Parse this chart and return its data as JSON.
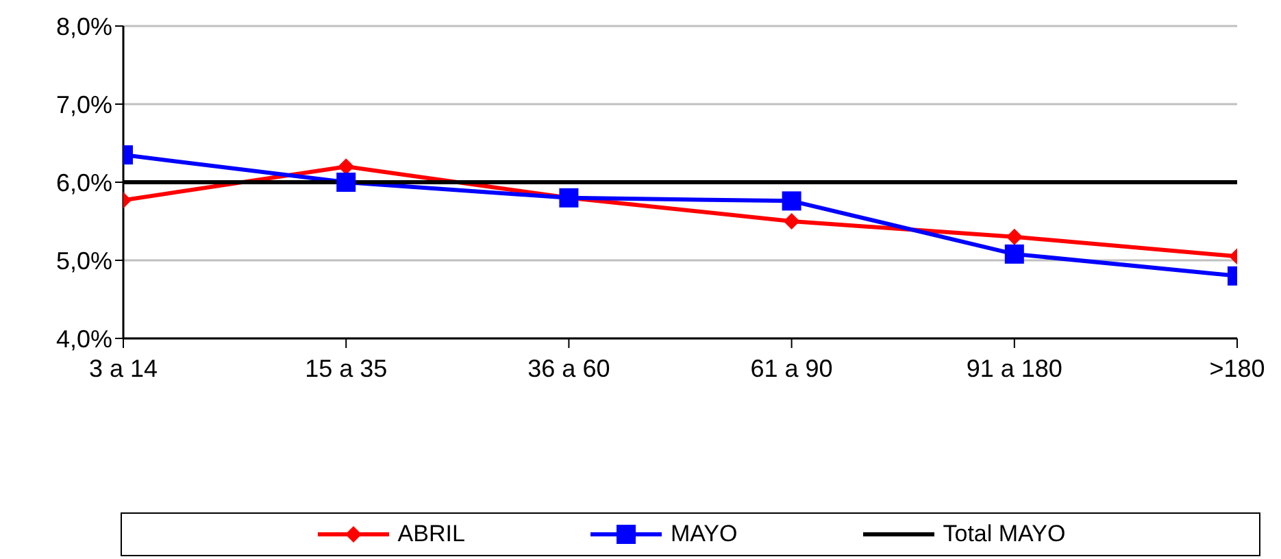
{
  "chart_data": {
    "type": "line",
    "categories": [
      "3 a 14",
      "15 a 35",
      "36 a 60",
      "61 a 90",
      "91 a 180",
      ">180"
    ],
    "series": [
      {
        "name": "ABRIL",
        "color": "#ff0000",
        "marker": "diamond",
        "values": [
          5.77,
          6.2,
          5.8,
          5.5,
          5.3,
          5.05
        ]
      },
      {
        "name": "MAYO",
        "color": "#0000ff",
        "marker": "square",
        "values": [
          6.35,
          6.0,
          5.8,
          5.76,
          5.08,
          4.8
        ]
      },
      {
        "name": "Total MAYO",
        "color": "#000000",
        "marker": "none",
        "values": [
          6.0,
          6.0,
          6.0,
          6.0,
          6.0,
          6.0
        ]
      }
    ],
    "ylim": [
      4,
      8
    ],
    "yticks": [
      {
        "value": 4,
        "label": "4,0%"
      },
      {
        "value": 5,
        "label": "5,0%"
      },
      {
        "value": 6,
        "label": "6,0%"
      },
      {
        "value": 7,
        "label": "7,0%"
      },
      {
        "value": 8,
        "label": "8,0%"
      }
    ],
    "grid": "y",
    "legend": "bottom",
    "line_style": "solid"
  }
}
